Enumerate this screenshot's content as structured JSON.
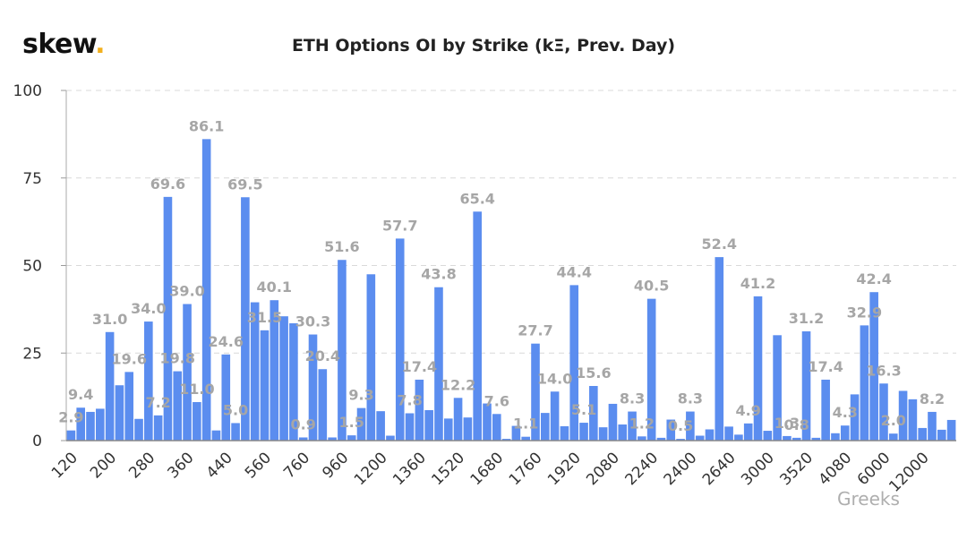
{
  "header": {
    "logo_text": "skew",
    "logo_dot": ".",
    "title": "ETH Options OI by Strike (kΞ, Prev. Day)"
  },
  "watermark": "Greeks",
  "colors": {
    "bar": "#5b8def",
    "bar_dark": "#3f6fd8",
    "label": "#a6a6a6",
    "grid": "#d9d9d9",
    "axis_text": "#333333",
    "logo_dot": "#f2b01e"
  },
  "chart_data": {
    "type": "bar",
    "title": "ETH Options OI by Strike (kΞ, Prev. Day)",
    "xlabel": "",
    "ylabel": "",
    "ylim": [
      0,
      100
    ],
    "yticks": [
      0,
      25,
      50,
      75,
      100
    ],
    "grid": true,
    "legend": "none",
    "x_tick_labels": [
      "120",
      "200",
      "280",
      "360",
      "440",
      "560",
      "760",
      "960",
      "1200",
      "1360",
      "1520",
      "1680",
      "1760",
      "1920",
      "2080",
      "2240",
      "2400",
      "2640",
      "3000",
      "3520",
      "4080",
      "6000",
      "12000"
    ],
    "values": [
      2.9,
      9.4,
      8.2,
      9.1,
      31.0,
      15.8,
      19.6,
      6.2,
      34.0,
      7.2,
      69.6,
      19.8,
      39.0,
      11.0,
      86.1,
      2.9,
      24.6,
      5.0,
      69.5,
      39.5,
      31.5,
      40.1,
      35.5,
      33.5,
      0.9,
      30.3,
      20.4,
      0.9,
      51.6,
      1.5,
      9.3,
      47.5,
      8.4,
      1.4,
      57.7,
      7.8,
      17.4,
      8.7,
      43.8,
      6.3,
      12.2,
      6.6,
      65.4,
      10.6,
      7.6,
      0.5,
      4.2,
      1.1,
      27.7,
      7.9,
      14.0,
      4.1,
      44.4,
      5.1,
      15.6,
      3.8,
      10.5,
      4.6,
      8.3,
      1.2,
      40.5,
      0.8,
      6.0,
      0.5,
      8.3,
      1.4,
      3.2,
      52.4,
      4.0,
      1.7,
      4.9,
      41.2,
      2.8,
      30.1,
      1.3,
      0.8,
      31.2,
      0.8,
      17.4,
      2.1,
      4.3,
      13.2,
      32.9,
      42.4,
      16.3,
      2.0,
      14.2,
      11.8,
      3.6,
      8.2,
      3.1,
      5.9
    ],
    "data_labels": [
      {
        "index": 0,
        "text": "2.9"
      },
      {
        "index": 1,
        "text": "9.4"
      },
      {
        "index": 4,
        "text": "31.0"
      },
      {
        "index": 6,
        "text": "19.6"
      },
      {
        "index": 8,
        "text": "34.0"
      },
      {
        "index": 9,
        "text": "7.2"
      },
      {
        "index": 10,
        "text": "69.6"
      },
      {
        "index": 11,
        "text": "19.8"
      },
      {
        "index": 12,
        "text": "39.0"
      },
      {
        "index": 13,
        "text": "11.0"
      },
      {
        "index": 14,
        "text": "86.1"
      },
      {
        "index": 16,
        "text": "24.6"
      },
      {
        "index": 17,
        "text": "5.0"
      },
      {
        "index": 18,
        "text": "69.5"
      },
      {
        "index": 20,
        "text": "31.5"
      },
      {
        "index": 21,
        "text": "40.1"
      },
      {
        "index": 24,
        "text": "0.9"
      },
      {
        "index": 25,
        "text": "30.3"
      },
      {
        "index": 26,
        "text": "20.4"
      },
      {
        "index": 28,
        "text": "51.6"
      },
      {
        "index": 29,
        "text": "1.5"
      },
      {
        "index": 30,
        "text": "9.3"
      },
      {
        "index": 34,
        "text": "57.7"
      },
      {
        "index": 35,
        "text": "7.8"
      },
      {
        "index": 36,
        "text": "17.4"
      },
      {
        "index": 38,
        "text": "43.8"
      },
      {
        "index": 40,
        "text": "12.2"
      },
      {
        "index": 42,
        "text": "65.4"
      },
      {
        "index": 44,
        "text": "7.6"
      },
      {
        "index": 47,
        "text": "1.1"
      },
      {
        "index": 48,
        "text": "27.7"
      },
      {
        "index": 50,
        "text": "14.0"
      },
      {
        "index": 52,
        "text": "44.4"
      },
      {
        "index": 53,
        "text": "5.1"
      },
      {
        "index": 54,
        "text": "15.6"
      },
      {
        "index": 58,
        "text": "8.3"
      },
      {
        "index": 59,
        "text": "1.2"
      },
      {
        "index": 60,
        "text": "40.5"
      },
      {
        "index": 63,
        "text": "0.5"
      },
      {
        "index": 64,
        "text": "8.3"
      },
      {
        "index": 67,
        "text": "52.4"
      },
      {
        "index": 70,
        "text": "4.9"
      },
      {
        "index": 71,
        "text": "41.2"
      },
      {
        "index": 74,
        "text": "1.3"
      },
      {
        "index": 75,
        "text": "0.8"
      },
      {
        "index": 76,
        "text": "31.2"
      },
      {
        "index": 78,
        "text": "17.4"
      },
      {
        "index": 80,
        "text": "4.3"
      },
      {
        "index": 82,
        "text": "32.9"
      },
      {
        "index": 83,
        "text": "42.4"
      },
      {
        "index": 84,
        "text": "16.3"
      },
      {
        "index": 85,
        "text": "2.0"
      },
      {
        "index": 89,
        "text": "8.2"
      }
    ]
  }
}
